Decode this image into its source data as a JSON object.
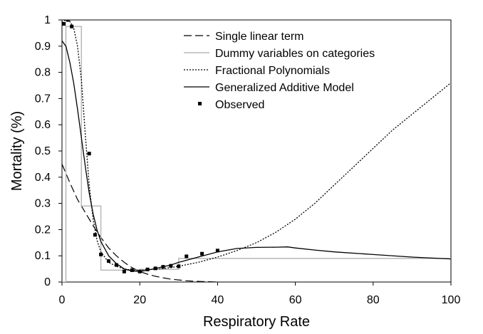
{
  "chart_data": {
    "type": "line",
    "title": "",
    "xlabel": "Respiratory Rate",
    "ylabel": "Mortality (%)",
    "xlim": [
      0,
      100
    ],
    "ylim": [
      0,
      1
    ],
    "xticks": [
      "0",
      "20",
      "40",
      "60",
      "80",
      "100"
    ],
    "yticks": [
      "0",
      "0.1",
      "0.2",
      "0.3",
      "0.4",
      "0.5",
      "0.6",
      "0.7",
      "0.8",
      "0.9",
      "1"
    ],
    "grid": false,
    "legend_position": "top-center",
    "series": [
      {
        "name": "Single linear term",
        "style": "dashed",
        "color": "#000000",
        "x": [
          0,
          2,
          4,
          6,
          8,
          10,
          12,
          14,
          16,
          18,
          20,
          22,
          24,
          26,
          28,
          30,
          32,
          34,
          36,
          38,
          40
        ],
        "y": [
          0.45,
          0.38,
          0.315,
          0.265,
          0.215,
          0.17,
          0.13,
          0.1,
          0.075,
          0.055,
          0.04,
          0.03,
          0.022,
          0.016,
          0.011,
          0.008,
          0.005,
          0.003,
          0.002,
          0.001,
          0.0
        ]
      },
      {
        "name": "Dummy variables on categories",
        "style": "step",
        "color": "#b8b8b8",
        "x": [
          0,
          1,
          1,
          5,
          5,
          10,
          10,
          20,
          20,
          30,
          30,
          100
        ],
        "y": [
          0.0,
          0.0,
          0.975,
          0.975,
          0.29,
          0.29,
          0.045,
          0.045,
          0.048,
          0.048,
          0.09,
          0.09
        ]
      },
      {
        "name": "Fractional Polynomials",
        "style": "dotted",
        "color": "#000000",
        "x": [
          0,
          1,
          2,
          3,
          4,
          5,
          6,
          7,
          8,
          9,
          10,
          12,
          14,
          16,
          18,
          20,
          22,
          25,
          28,
          30,
          35,
          40,
          45,
          50,
          55,
          60,
          65,
          70,
          75,
          80,
          85,
          90,
          95,
          100
        ],
        "y": [
          0.99,
          1.0,
          0.995,
          0.97,
          0.9,
          0.77,
          0.56,
          0.37,
          0.24,
          0.16,
          0.115,
          0.075,
          0.06,
          0.05,
          0.045,
          0.045,
          0.047,
          0.05,
          0.055,
          0.06,
          0.075,
          0.095,
          0.12,
          0.15,
          0.19,
          0.24,
          0.3,
          0.37,
          0.44,
          0.51,
          0.58,
          0.64,
          0.7,
          0.76
        ]
      },
      {
        "name": "Generalized Additive Model",
        "style": "solid",
        "color": "#000000",
        "x": [
          0,
          1,
          2,
          3,
          4,
          5,
          6,
          7,
          8,
          9,
          10,
          12,
          14,
          16,
          18,
          20,
          22,
          25,
          28,
          30,
          35,
          40,
          45,
          50,
          55,
          58,
          60,
          65,
          70,
          80,
          90,
          100
        ],
        "y": [
          0.92,
          0.9,
          0.84,
          0.76,
          0.66,
          0.55,
          0.44,
          0.34,
          0.26,
          0.2,
          0.155,
          0.1,
          0.07,
          0.05,
          0.042,
          0.04,
          0.045,
          0.055,
          0.065,
          0.075,
          0.095,
          0.115,
          0.128,
          0.132,
          0.133,
          0.134,
          0.13,
          0.122,
          0.115,
          0.105,
          0.095,
          0.088
        ]
      },
      {
        "name": "Observed",
        "style": "markers",
        "color": "#000000",
        "x": [
          0.5,
          1.5,
          2.5,
          7,
          8.5,
          10,
          12,
          14,
          16,
          18,
          20,
          22,
          24,
          26,
          28,
          30,
          32,
          36,
          40
        ],
        "y": [
          0.985,
          1.0,
          0.975,
          0.49,
          0.18,
          0.105,
          0.08,
          0.065,
          0.04,
          0.045,
          0.04,
          0.048,
          0.052,
          0.058,
          0.062,
          0.06,
          0.098,
          0.108,
          0.12
        ]
      }
    ]
  }
}
